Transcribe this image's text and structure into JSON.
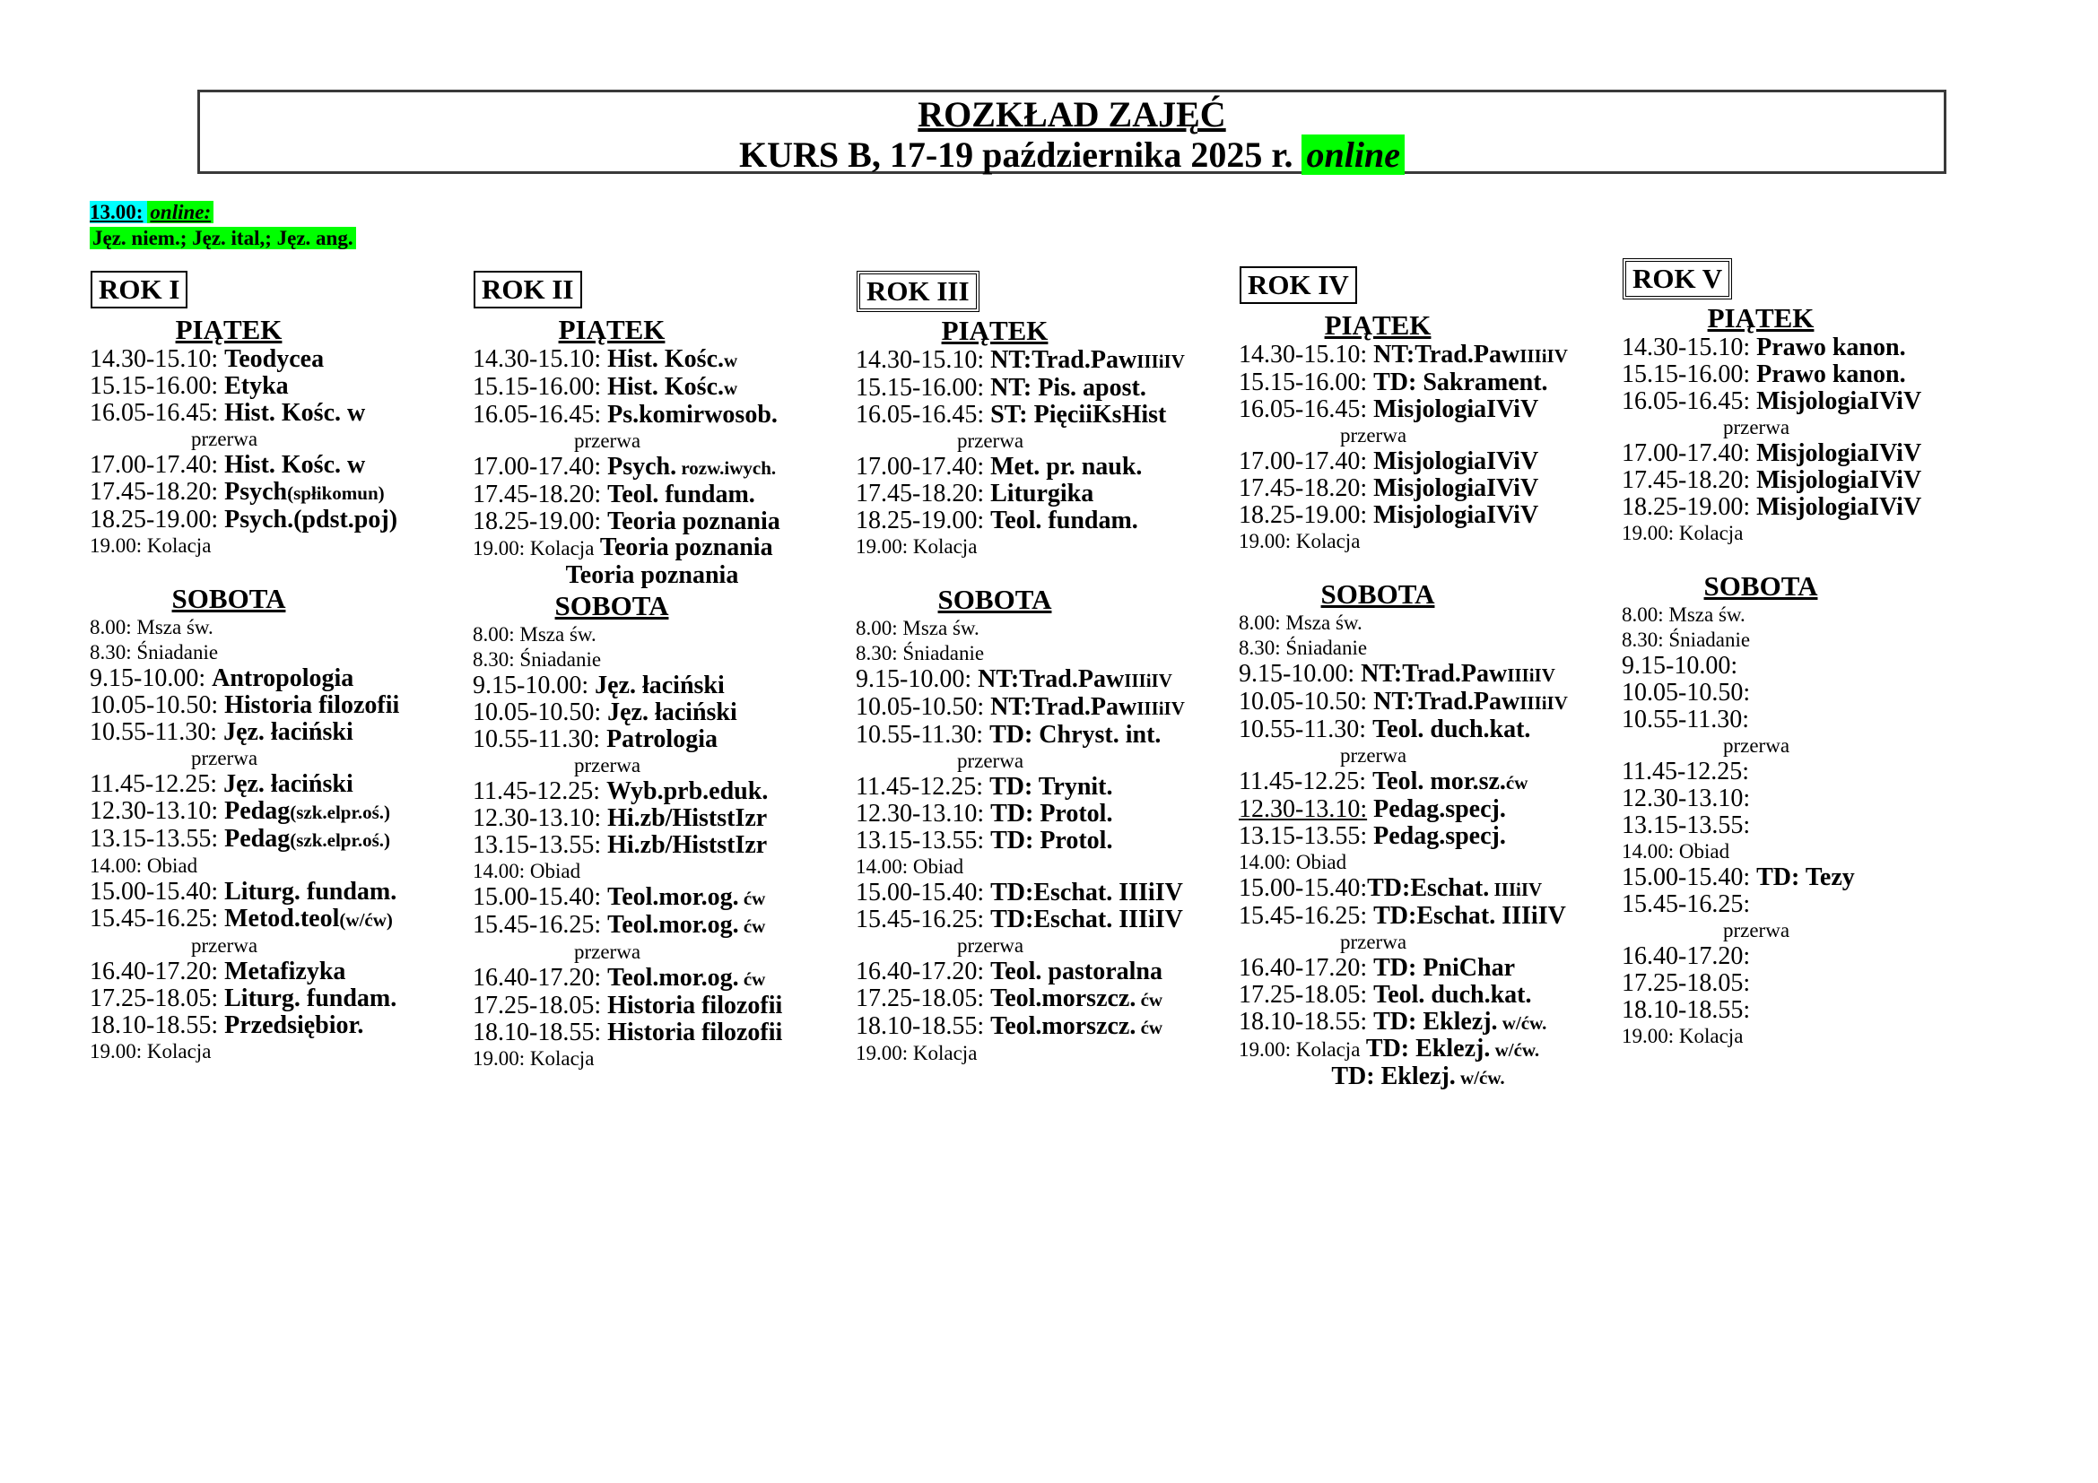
{
  "header": {
    "title": "ROZKŁAD ZAJĘĆ",
    "subtitle": "KURS B, 17-19 października 2025 r. ",
    "subtitle_highlight": "online"
  },
  "note": {
    "time": "13.00:",
    "online": "online:",
    "languages": "Jęz. niem.; Jęz. ital,; Jęz. ang."
  },
  "colors": {
    "highlight_green": "#00ff00",
    "highlight_cyan": "#00ffff"
  },
  "columns": [
    {
      "year": "ROK I",
      "double_border": false,
      "sections": [
        {
          "day": "PIĄTEK",
          "spacer": false,
          "rows": [
            {
              "k": "r",
              "t": "14.30-15.10:",
              "s": "Teodycea"
            },
            {
              "k": "r",
              "t": "15.15-16.00:",
              "s": "Etyka"
            },
            {
              "k": "r",
              "t": "16.05-16.45:",
              "s": "Hist. Kośc. w"
            },
            {
              "k": "b",
              "t": "przerwa"
            },
            {
              "k": "r",
              "t": "17.00-17.40:",
              "s": "Hist. Kośc. w"
            },
            {
              "k": "r",
              "t": "17.45-18.20:",
              "s": "Psych",
              "ss": "(spłikomun)"
            },
            {
              "k": "r",
              "t": "18.25-19.00:",
              "s": "Psych.(pdst.poj)"
            },
            {
              "k": "s",
              "t": "19.00: Kolacja"
            }
          ]
        },
        {
          "day": "SOBOTA",
          "spacer": true,
          "rows": [
            {
              "k": "s",
              "t": "8.00: Msza św."
            },
            {
              "k": "s",
              "t": "8.30: Śniadanie"
            },
            {
              "k": "r",
              "t": "9.15-10.00:",
              "s": "Antropologia"
            },
            {
              "k": "r",
              "t": "10.05-10.50:",
              "s": "Historia filozofii"
            },
            {
              "k": "r",
              "t": "10.55-11.30:",
              "s": "Jęz. łaciński"
            },
            {
              "k": "b",
              "t": "przerwa"
            },
            {
              "k": "r",
              "t": "11.45-12.25:",
              "s": "Jęz. łaciński"
            },
            {
              "k": "r",
              "t": "12.30-13.10:",
              "s": "Pedag",
              "ss": "(szk.elpr.oś.)"
            },
            {
              "k": "r",
              "t": "13.15-13.55:",
              "s": "Pedag",
              "ss": "(szk.elpr.oś.)"
            },
            {
              "k": "s",
              "t": "14.00: Obiad"
            },
            {
              "k": "r",
              "t": "15.00-15.40:",
              "s": "Liturg. fundam."
            },
            {
              "k": "r",
              "t": "15.45-16.25:",
              "s": "Metod.teol",
              "ss": "(w/ćw)"
            },
            {
              "k": "b",
              "t": "przerwa"
            },
            {
              "k": "r",
              "t": "16.40-17.20:",
              "s": "Metafizyka"
            },
            {
              "k": "r",
              "t": "17.25-18.05:",
              "s": "Liturg. fundam."
            },
            {
              "k": "r",
              "t": "18.10-18.55:",
              "s": "Przedsiębior."
            },
            {
              "k": "s",
              "t": "19.00: Kolacja"
            }
          ]
        }
      ]
    },
    {
      "year": "ROK II",
      "double_border": false,
      "sections": [
        {
          "day": "PIĄTEK",
          "spacer": false,
          "rows": [
            {
              "k": "r",
              "t": "14.30-15.10:",
              "s": "Hist. Kośc.",
              "ss": "w"
            },
            {
              "k": "r",
              "t": "15.15-16.00:",
              "s": "Hist. Kośc.",
              "ss": "w"
            },
            {
              "k": "r",
              "t": "16.05-16.45:",
              "s": "Ps.komirwosob."
            },
            {
              "k": "b",
              "t": "przerwa"
            },
            {
              "k": "r",
              "t": "17.00-17.40:",
              "s": "Psych.",
              "ss": " rozw.iwych."
            },
            {
              "k": "r",
              "t": "17.45-18.20:",
              "s": "Teol. fundam."
            },
            {
              "k": "r",
              "t": "18.25-19.00:",
              "s": "Teoria poznania"
            },
            {
              "k": "s",
              "t": "19.00: Kolacja",
              "bs": " Teoria poznania"
            },
            {
              "k": "c",
              "s": "Teoria poznania"
            }
          ]
        },
        {
          "day": "SOBOTA",
          "spacer": false,
          "rows": [
            {
              "k": "s",
              "t": "8.00: Msza św."
            },
            {
              "k": "s",
              "t": "8.30: Śniadanie"
            },
            {
              "k": "r",
              "t": "9.15-10.00:",
              "s": "Jęz. łaciński"
            },
            {
              "k": "r",
              "t": "10.05-10.50:",
              "s": "Jęz. łaciński"
            },
            {
              "k": "r",
              "t": "10.55-11.30:",
              "s": "Patrologia"
            },
            {
              "k": "b",
              "t": "przerwa"
            },
            {
              "k": "r",
              "t": "11.45-12.25:",
              "s": "Wyb.prb.eduk."
            },
            {
              "k": "r",
              "t": "12.30-13.10:",
              "s": "Hi.zb/HiststIzr"
            },
            {
              "k": "r",
              "t": "13.15-13.55:",
              "s": "Hi.zb/HiststIzr"
            },
            {
              "k": "s",
              "t": "14.00: Obiad"
            },
            {
              "k": "r",
              "t": "15.00-15.40:",
              "s": "Teol.mor.og.",
              "ss": " ćw"
            },
            {
              "k": "r",
              "t": "15.45-16.25:",
              "s": "Teol.mor.og.",
              "ss": " ćw"
            },
            {
              "k": "b",
              "t": "przerwa"
            },
            {
              "k": "r",
              "t": "16.40-17.20:",
              "s": "Teol.mor.og.",
              "ss": " ćw"
            },
            {
              "k": "r",
              "t": "17.25-18.05:",
              "s": "Historia filozofii"
            },
            {
              "k": "r",
              "t": "18.10-18.55:",
              "s": "Historia filozofii"
            },
            {
              "k": "s",
              "t": "19.00: Kolacja"
            }
          ]
        }
      ]
    },
    {
      "year": "ROK III",
      "double_border": true,
      "sections": [
        {
          "day": "PIĄTEK",
          "spacer": false,
          "rows": [
            {
              "k": "r",
              "t": "14.30-15.10:",
              "s": "NT:Trad.Paw",
              "ss": "IIIiIV"
            },
            {
              "k": "r",
              "t": "15.15-16.00:",
              "s": "NT: Pis. apost."
            },
            {
              "k": "r",
              "t": "16.05-16.45:",
              "s": "ST: PięciiKsHist"
            },
            {
              "k": "b",
              "t": "przerwa"
            },
            {
              "k": "r",
              "t": "17.00-17.40:",
              "s": "Met. pr. nauk."
            },
            {
              "k": "r",
              "t": "17.45-18.20:",
              "s": "Liturgika"
            },
            {
              "k": "r",
              "t": "18.25-19.00:",
              "s": "Teol. fundam."
            },
            {
              "k": "s",
              "t": "19.00: Kolacja"
            }
          ]
        },
        {
          "day": "SOBOTA",
          "spacer": true,
          "rows": [
            {
              "k": "s",
              "t": "8.00: Msza św."
            },
            {
              "k": "s",
              "t": "8.30: Śniadanie"
            },
            {
              "k": "r",
              "t": "9.15-10.00:",
              "s": "NT:Trad.Paw",
              "ss": "IIIiIV"
            },
            {
              "k": "r",
              "t": "10.05-10.50:",
              "s": "NT:Trad.Paw",
              "ss": "IIIiIV"
            },
            {
              "k": "r",
              "t": "10.55-11.30:",
              "s": "TD: Chryst. int."
            },
            {
              "k": "b",
              "t": "przerwa"
            },
            {
              "k": "r",
              "t": "11.45-12.25:",
              "s": "TD: Trynit."
            },
            {
              "k": "r",
              "t": "12.30-13.10:",
              "s": "TD: Protol."
            },
            {
              "k": "r",
              "t": "13.15-13.55:",
              "s": "TD: Protol."
            },
            {
              "k": "s",
              "t": "14.00: Obiad"
            },
            {
              "k": "r",
              "t": "15.00-15.40:",
              "s": "TD:Eschat. IIIiIV"
            },
            {
              "k": "r",
              "t": "15.45-16.25:",
              "s": "TD:Eschat. IIIiIV"
            },
            {
              "k": "b",
              "t": "przerwa"
            },
            {
              "k": "r",
              "t": "16.40-17.20:",
              "s": "Teol. pastoralna"
            },
            {
              "k": "r",
              "t": "17.25-18.05:",
              "s": "Teol.morszcz.",
              "ss": " ćw"
            },
            {
              "k": "r",
              "t": "18.10-18.55:",
              "s": "Teol.morszcz.",
              "ss": " ćw"
            },
            {
              "k": "s",
              "t": "19.00: Kolacja"
            }
          ]
        }
      ]
    },
    {
      "year": "ROK IV",
      "double_border": false,
      "sections": [
        {
          "day": "PIĄTEK",
          "spacer": false,
          "rows": [
            {
              "k": "r",
              "t": "14.30-15.10:",
              "s": "NT:Trad.Paw",
              "ss": "IIIiIV"
            },
            {
              "k": "r",
              "t": "15.15-16.00:",
              "s": "TD: Sakrament."
            },
            {
              "k": "r",
              "t": "16.05-16.45:",
              "s": "MisjologiaIViV"
            },
            {
              "k": "b",
              "t": "przerwa"
            },
            {
              "k": "r",
              "t": "17.00-17.40:",
              "s": "MisjologiaIViV"
            },
            {
              "k": "r",
              "t": "17.45-18.20:",
              "s": "MisjologiaIViV"
            },
            {
              "k": "r",
              "t": "18.25-19.00:",
              "s": "MisjologiaIViV"
            },
            {
              "k": "s",
              "t": "19.00: Kolacja"
            }
          ]
        },
        {
          "day": "SOBOTA",
          "spacer": true,
          "rows": [
            {
              "k": "s",
              "t": "8.00: Msza św."
            },
            {
              "k": "s",
              "t": "8.30: Śniadanie"
            },
            {
              "k": "r",
              "t": "9.15-10.00:",
              "s": "NT:Trad.Paw",
              "ss": "IIIiIV"
            },
            {
              "k": "r",
              "t": "10.05-10.50:",
              "s": "NT:Trad.Paw",
              "ss": "IIIiIV"
            },
            {
              "k": "r",
              "t": "10.55-11.30:",
              "s": "Teol. duch.kat."
            },
            {
              "k": "b",
              "t": "przerwa"
            },
            {
              "k": "r",
              "t": "11.45-12.25:",
              "s": "Teol. mor.sz.",
              "ss": "ćw"
            },
            {
              "k": "r",
              "t": "12.30-13.10:",
              "u": true,
              "s": "Pedag.specj."
            },
            {
              "k": "r",
              "t": "13.15-13.55:",
              "s": "Pedag.specj."
            },
            {
              "k": "s",
              "t": "14.00: Obiad"
            },
            {
              "k": "r",
              "t": "15.00-15.40:",
              "nospace": true,
              "s": "TD:Eschat.",
              "ss": " IIIiIV"
            },
            {
              "k": "r",
              "t": "15.45-16.25:",
              "s": "TD:Eschat. IIIiIV"
            },
            {
              "k": "b",
              "t": "przerwa"
            },
            {
              "k": "r",
              "t": "16.40-17.20:",
              "s": "TD: PniChar"
            },
            {
              "k": "r",
              "t": "17.25-18.05:",
              "s": "Teol. duch.kat."
            },
            {
              "k": "r",
              "t": "18.10-18.55:",
              "s": "TD: Eklezj.",
              "ss": " w/ćw."
            },
            {
              "k": "s",
              "t": "19.00: Kolacja",
              "bs": " TD: Eklezj.",
              "bss": " w/ćw."
            },
            {
              "k": "c",
              "s": "TD: Eklezj.",
              "ss": " w/ćw."
            }
          ]
        }
      ]
    },
    {
      "year": "ROK V",
      "double_border": true,
      "sections": [
        {
          "day": "PIĄTEK",
          "spacer": false,
          "rows": [
            {
              "k": "r",
              "t": "14.30-15.10:",
              "s": "Prawo kanon."
            },
            {
              "k": "r",
              "t": "15.15-16.00:",
              "s": "Prawo kanon."
            },
            {
              "k": "r",
              "t": "16.05-16.45:",
              "s": "MisjologiaIViV"
            },
            {
              "k": "b",
              "t": "przerwa"
            },
            {
              "k": "r",
              "t": "17.00-17.40:",
              "s": "MisjologiaIViV"
            },
            {
              "k": "r",
              "t": "17.45-18.20:",
              "s": "MisjologiaIViV"
            },
            {
              "k": "r",
              "t": "18.25-19.00:",
              "s": "MisjologiaIViV"
            },
            {
              "k": "s",
              "t": "19.00: Kolacja"
            }
          ]
        },
        {
          "day": "SOBOTA",
          "spacer": true,
          "rows": [
            {
              "k": "s",
              "t": "8.00: Msza św."
            },
            {
              "k": "s",
              "t": "8.30: Śniadanie"
            },
            {
              "k": "r",
              "t": "9.15-10.00:",
              "s": ""
            },
            {
              "k": "r",
              "t": "10.05-10.50:",
              "s": ""
            },
            {
              "k": "r",
              "t": "10.55-11.30:",
              "s": ""
            },
            {
              "k": "b",
              "t": "przerwa"
            },
            {
              "k": "r",
              "t": "11.45-12.25:",
              "s": ""
            },
            {
              "k": "r",
              "t": "12.30-13.10:",
              "s": ""
            },
            {
              "k": "r",
              "t": "13.15-13.55:",
              "s": ""
            },
            {
              "k": "s",
              "t": "14.00: Obiad"
            },
            {
              "k": "r",
              "t": "15.00-15.40:",
              "s": "TD: Tezy"
            },
            {
              "k": "r",
              "t": "15.45-16.25:",
              "s": ""
            },
            {
              "k": "b",
              "t": "przerwa"
            },
            {
              "k": "r",
              "t": "16.40-17.20:",
              "s": ""
            },
            {
              "k": "r",
              "t": "17.25-18.05:",
              "s": ""
            },
            {
              "k": "r",
              "t": "18.10-18.55:",
              "s": ""
            },
            {
              "k": "s",
              "t": "19.00: Kolacja"
            }
          ]
        }
      ]
    }
  ]
}
